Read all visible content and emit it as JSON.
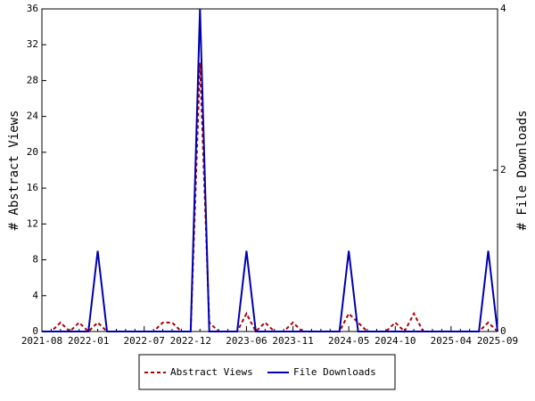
{
  "chart_data": {
    "type": "line",
    "categories": [
      "2021-08",
      null,
      null,
      null,
      null,
      "2022-01",
      null,
      null,
      null,
      null,
      null,
      "2022-07",
      null,
      null,
      null,
      null,
      "2022-12",
      null,
      null,
      null,
      null,
      null,
      "2023-06",
      null,
      null,
      null,
      null,
      "2023-11",
      null,
      null,
      null,
      null,
      null,
      "2024-05",
      null,
      null,
      null,
      null,
      "2024-10",
      null,
      null,
      null,
      null,
      null,
      "2025-04",
      null,
      null,
      null,
      null,
      "2025-09"
    ],
    "series": [
      {
        "name": "Abstract Views",
        "color": "#b00000",
        "dashed": true,
        "values": [
          0,
          0,
          1,
          0,
          1,
          0,
          1,
          0,
          0,
          0,
          0,
          0,
          0,
          1,
          1,
          0,
          0,
          30,
          1,
          0,
          0,
          0,
          2,
          0,
          1,
          0,
          0,
          1,
          0,
          0,
          0,
          0,
          0,
          2,
          1,
          0,
          0,
          0,
          1,
          0,
          2,
          0,
          0,
          0,
          0,
          0,
          0,
          0,
          1,
          0
        ]
      },
      {
        "name": "File Downloads",
        "color": "#0000b0",
        "axis": "y2",
        "values": [
          0,
          0,
          0,
          0,
          0,
          0,
          1,
          0,
          0,
          0,
          0,
          0,
          0,
          0,
          0,
          0,
          0,
          4,
          0,
          0,
          0,
          0,
          1,
          0,
          0,
          0,
          0,
          0,
          0,
          0,
          0,
          0,
          0,
          1,
          0,
          0,
          0,
          0,
          0,
          0,
          0,
          0,
          0,
          0,
          0,
          0,
          0,
          0,
          1,
          0
        ]
      }
    ],
    "y_label": "# Abstract Views",
    "y2_label": "# File Downloads",
    "ylim": [
      0,
      36
    ],
    "yticks": [
      0,
      4,
      8,
      12,
      16,
      20,
      24,
      28,
      32,
      36
    ],
    "y2lim": [
      0,
      4
    ],
    "y2ticks": [
      0,
      2,
      4
    ]
  }
}
